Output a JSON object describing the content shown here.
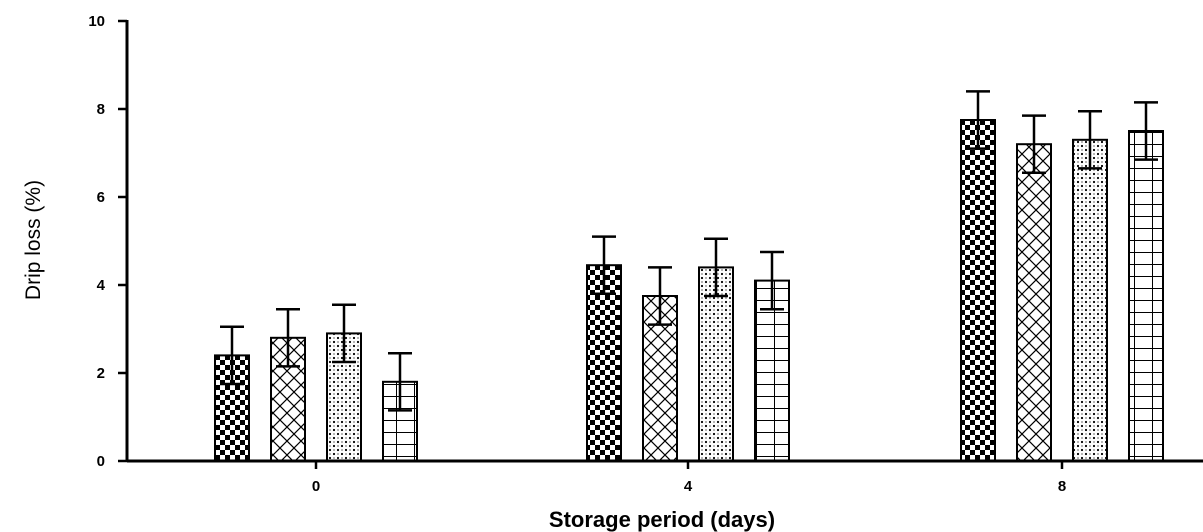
{
  "chart_data": {
    "type": "bar",
    "title": "",
    "xlabel": "Storage period (days)",
    "ylabel": "Drip loss (%)",
    "ylim": [
      0,
      10
    ],
    "yticks": [
      "0",
      "2",
      "4",
      "6",
      "8",
      "10"
    ],
    "categories": [
      "0",
      "4",
      "8"
    ],
    "grid": false,
    "legend": "none",
    "series": [
      {
        "pattern": "checkerboard",
        "values": [
          2.4,
          4.45,
          7.75
        ],
        "errors": [
          0.65,
          0.65,
          0.65
        ]
      },
      {
        "pattern": "crosshatch",
        "values": [
          2.8,
          3.75,
          7.2
        ],
        "errors": [
          0.65,
          0.65,
          0.65
        ]
      },
      {
        "pattern": "dots",
        "values": [
          2.9,
          4.4,
          7.3
        ],
        "errors": [
          0.65,
          0.65,
          0.65
        ]
      },
      {
        "pattern": "grid",
        "values": [
          1.8,
          4.1,
          7.5
        ],
        "errors": [
          0.65,
          0.65,
          0.65
        ]
      }
    ],
    "colors": {
      "axis": "#000000",
      "bar_fill": "#ffffff",
      "bar_stroke": "#000000"
    }
  }
}
